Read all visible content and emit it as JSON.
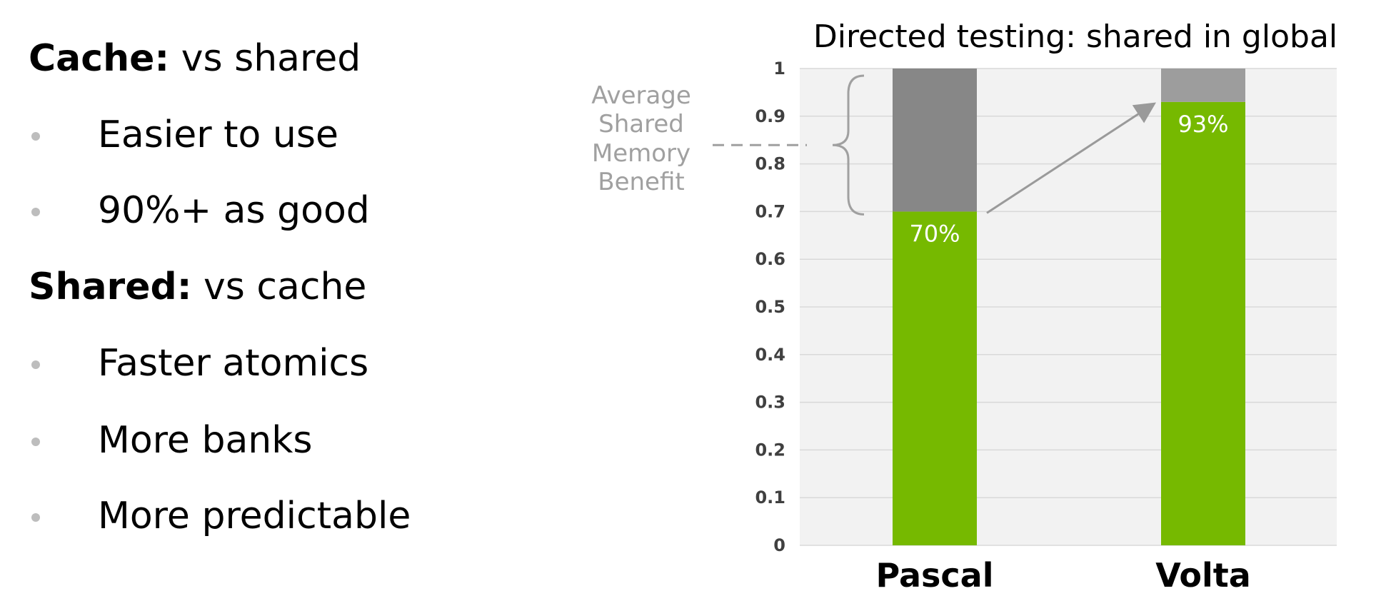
{
  "left_panel": {
    "sections": [
      {
        "title_bold": "Cache:",
        "title_rest": " vs shared",
        "bullets": [
          "Easier to use",
          "90%+ as good"
        ]
      },
      {
        "title_bold": "Shared:",
        "title_rest": " vs cache",
        "bullets": [
          "Faster atomics",
          "More banks",
          "More predictable"
        ]
      }
    ]
  },
  "colors": {
    "green": "#76b900",
    "gray_top": "#878787",
    "gray_top_light": "#9d9d9d",
    "plot_bg": "#f2f2f2",
    "grid": "#d9d9d9",
    "annotation": "#a0a0a0"
  },
  "chart_data": {
    "type": "bar",
    "stacked": true,
    "title": "Directed testing: shared in global",
    "categories": [
      "Pascal",
      "Volta"
    ],
    "series": [
      {
        "values": [
          0.7,
          0.93
        ],
        "data_labels": [
          "70%",
          "93%"
        ]
      },
      {
        "values": [
          0.3,
          0.07
        ]
      }
    ],
    "ylim": [
      0,
      1
    ],
    "yticks": [
      "0",
      "0.1",
      "0.2",
      "0.3",
      "0.4",
      "0.5",
      "0.6",
      "0.7",
      "0.8",
      "0.9",
      "1"
    ],
    "grid": true,
    "annotation": {
      "lines": [
        "Average",
        "Shared",
        "Memory",
        "Benefit"
      ]
    }
  }
}
